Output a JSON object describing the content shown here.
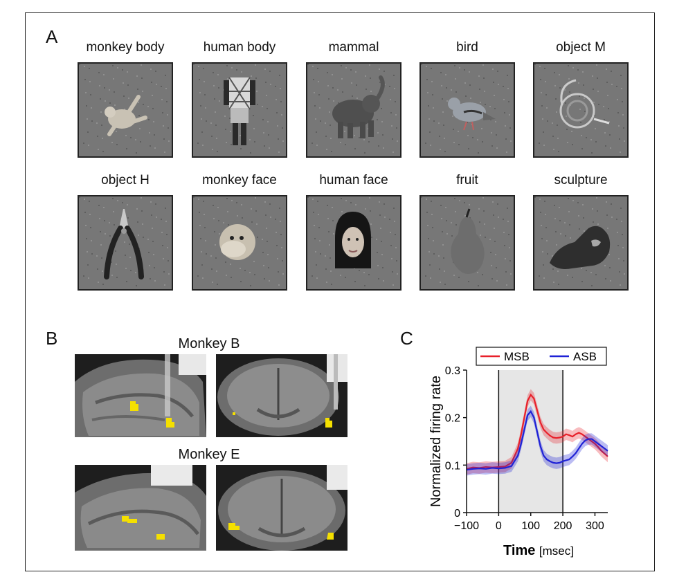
{
  "panels": {
    "a": "A",
    "b": "B",
    "c": "C"
  },
  "stimuli": [
    {
      "label": "monkey body",
      "icon": "monkey-body-icon"
    },
    {
      "label": "human body",
      "icon": "human-body-icon"
    },
    {
      "label": "mammal",
      "icon": "elephant-icon"
    },
    {
      "label": "bird",
      "icon": "pigeon-icon"
    },
    {
      "label": "object M",
      "icon": "french-horn-icon"
    },
    {
      "label": "object H",
      "icon": "pliers-icon"
    },
    {
      "label": "monkey face",
      "icon": "monkey-face-icon"
    },
    {
      "label": "human face",
      "icon": "human-face-icon"
    },
    {
      "label": "fruit",
      "icon": "pear-icon"
    },
    {
      "label": "sculpture",
      "icon": "sculpture-icon"
    }
  ],
  "monkeys": {
    "b": "Monkey B",
    "e": "Monkey E"
  },
  "colors": {
    "msb": "#e8202a",
    "asb": "#1f22d6",
    "activation": "#f5e000",
    "shade": "#e6e6e6"
  },
  "chart_data": {
    "type": "line",
    "xlabel": "Time",
    "xunit": "[msec]",
    "ylabel": "Normalized firing rate",
    "xlim": [
      -100,
      340
    ],
    "ylim": [
      0,
      0.3
    ],
    "xticks": [
      "−100",
      "0",
      "100",
      "200",
      "300"
    ],
    "yticks": [
      "0",
      "0.1",
      "0.2",
      "0.3"
    ],
    "shaded_interval": [
      0,
      200
    ],
    "legend": "top",
    "x": [
      -100,
      -80,
      -60,
      -40,
      -20,
      0,
      20,
      40,
      60,
      70,
      80,
      90,
      100,
      110,
      120,
      130,
      140,
      150,
      160,
      170,
      180,
      190,
      200,
      210,
      220,
      230,
      240,
      250,
      260,
      270,
      280,
      290,
      300,
      310,
      320,
      340
    ],
    "series": [
      {
        "name": "MSB",
        "values": [
          0.092,
          0.095,
          0.094,
          0.096,
          0.095,
          0.096,
          0.097,
          0.105,
          0.135,
          0.165,
          0.2,
          0.235,
          0.248,
          0.24,
          0.215,
          0.19,
          0.175,
          0.168,
          0.162,
          0.158,
          0.157,
          0.158,
          0.16,
          0.165,
          0.163,
          0.16,
          0.165,
          0.168,
          0.165,
          0.16,
          0.155,
          0.15,
          0.145,
          0.138,
          0.13,
          0.118
        ]
      },
      {
        "name": "ASB",
        "values": [
          0.09,
          0.092,
          0.093,
          0.092,
          0.094,
          0.093,
          0.094,
          0.098,
          0.12,
          0.145,
          0.175,
          0.205,
          0.213,
          0.2,
          0.17,
          0.14,
          0.12,
          0.112,
          0.108,
          0.105,
          0.104,
          0.105,
          0.108,
          0.11,
          0.112,
          0.118,
          0.125,
          0.135,
          0.145,
          0.152,
          0.155,
          0.155,
          0.15,
          0.145,
          0.14,
          0.13
        ]
      }
    ]
  }
}
